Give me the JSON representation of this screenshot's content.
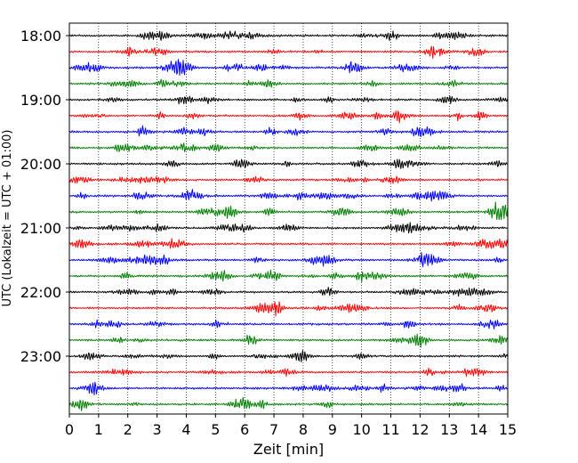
{
  "chart_data": {
    "type": "line",
    "title": "",
    "xlabel": "Zeit  [min]",
    "ylabel": "UTC (Lokalzeit = UTC + 01:00)",
    "xlim": [
      0,
      15
    ],
    "x_ticks": [
      "0",
      "1",
      "2",
      "3",
      "4",
      "5",
      "6",
      "7",
      "8",
      "9",
      "10",
      "11",
      "12",
      "13",
      "14",
      "15"
    ],
    "y_tick_labels": [
      "18:00",
      "19:00",
      "20:00",
      "21:00",
      "22:00",
      "23:00"
    ],
    "y_tick_hours": [
      18,
      19,
      20,
      21,
      22,
      23
    ],
    "traces_start": "18:00",
    "trace_interval_minutes": 15,
    "trace_count": 24,
    "trace_colors": [
      "#000000",
      "#ff0000",
      "#0000ff",
      "#008000"
    ],
    "grid": "vertical dotted at each minute",
    "legend": "none"
  }
}
